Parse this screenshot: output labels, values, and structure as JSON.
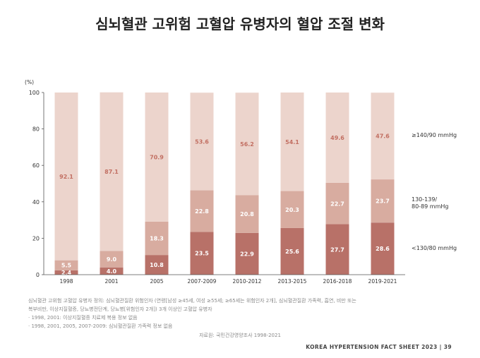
{
  "title": "심뇌혈관 고위험 고혈압 유병자의 혈압 조절 변화",
  "chart_data": {
    "type": "bar",
    "stacked": true,
    "unit_label": "(%)",
    "ylim": [
      0,
      100
    ],
    "yticks": [
      0,
      20,
      40,
      60,
      80,
      100
    ],
    "grid": false,
    "legend_position": "right",
    "categories": [
      "1998",
      "2001",
      "2005",
      "2007-2009",
      "2010-2012",
      "2013-2015",
      "2016-2018",
      "2019-2021"
    ],
    "series": [
      {
        "name": "<130/80 mmHg",
        "color": "#b87168",
        "label_color": "#ffffff",
        "values": [
          2.4,
          4.0,
          10.8,
          23.5,
          22.9,
          25.6,
          27.7,
          28.6
        ],
        "labels": [
          "2.4",
          "4.0",
          "10.8",
          "23.5",
          "22.9",
          "25.6",
          "27.7",
          "28.6"
        ]
      },
      {
        "name": "130-139/ 80-89 mmHg",
        "color": "#d8aca0",
        "label_color": "#ffffff",
        "values": [
          5.5,
          9.0,
          18.3,
          22.8,
          20.8,
          20.3,
          22.7,
          23.7
        ],
        "labels": [
          "5.5",
          "9.0",
          "18.3",
          "22.8",
          "20.8",
          "20.3",
          "22.7",
          "23.7"
        ]
      },
      {
        "name": "≥140/90 mmHg",
        "color": "#ecd4cc",
        "label_color": "#c26f62",
        "values": [
          92.1,
          87.1,
          70.9,
          53.6,
          56.2,
          54.1,
          49.6,
          47.6
        ],
        "labels": [
          "92.1",
          "87.1",
          "70.9",
          "53.6",
          "56.2",
          "54.1",
          "49.6",
          "47.6"
        ]
      }
    ]
  },
  "legend": {
    "high_label": "≥140/90 mmHg",
    "mid_label_line1": "130-139/",
    "mid_label_line2": "80-89 mmHg",
    "low_label": "<130/80 mmHg"
  },
  "footnotes": {
    "line1": "심뇌혈관 고위험 고혈압 유병자 정의: 심뇌혈관질환 위험인자 (연령[남성 ≥45세, 여성 ≥55세; ≥65세는 위험인자 2개], 심뇌혈관질환 가족력, 흡연, 비만 또는",
    "line2": "복부비만, 이상지질혈증, 당뇨병전단계, 당뇨병[위험인자 2개]) 3개 이상인 고혈압 유병자",
    "line3": "· 1998, 2001: 이상지질혈증 치료제 복용 정보 없음",
    "line4": "· 1998, 2001, 2005, 2007-2009: 심뇌혈관질환 가족력 정보 없음"
  },
  "source": "자료원: 국민건강영양조사 1998-2021",
  "footer": "KOREA HYPERTENSION FACT SHEET 2023 | 39"
}
